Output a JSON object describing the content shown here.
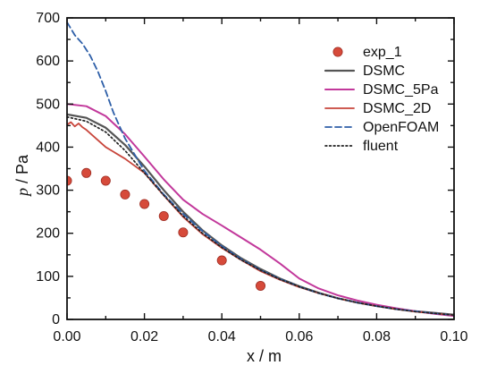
{
  "chart_data": {
    "type": "line",
    "title": "",
    "xlabel": "x / m",
    "ylabel_symbol": "p",
    "ylabel_unit": "/ Pa",
    "xlim": [
      0,
      0.1
    ],
    "ylim": [
      0,
      700
    ],
    "x_ticks": [
      0.0,
      0.02,
      0.04,
      0.06,
      0.08,
      0.1
    ],
    "x_tick_labels": [
      "0.00",
      "0.02",
      "0.04",
      "0.06",
      "0.08",
      "0.10"
    ],
    "y_ticks": [
      0,
      100,
      200,
      300,
      400,
      500,
      600,
      700
    ],
    "y_tick_labels": [
      "0",
      "100",
      "200",
      "300",
      "400",
      "500",
      "600",
      "700"
    ],
    "grid": false,
    "legend_position": "top-right",
    "series": [
      {
        "name": "exp_1",
        "kind": "scatter",
        "color": "#d64a3a",
        "points": [
          [
            0.0,
            322
          ],
          [
            0.005,
            340
          ],
          [
            0.01,
            322
          ],
          [
            0.015,
            290
          ],
          [
            0.02,
            268
          ],
          [
            0.025,
            240
          ],
          [
            0.03,
            202
          ],
          [
            0.04,
            137
          ],
          [
            0.05,
            78
          ]
        ]
      },
      {
        "name": "DSMC",
        "kind": "line",
        "color": "#555555",
        "dash": "solid",
        "points": [
          [
            0.0,
            476
          ],
          [
            0.005,
            468
          ],
          [
            0.01,
            445
          ],
          [
            0.015,
            405
          ],
          [
            0.02,
            355
          ],
          [
            0.025,
            300
          ],
          [
            0.03,
            250
          ],
          [
            0.035,
            207
          ],
          [
            0.04,
            172
          ],
          [
            0.045,
            142
          ],
          [
            0.05,
            117
          ],
          [
            0.055,
            95
          ],
          [
            0.06,
            77
          ],
          [
            0.065,
            62
          ],
          [
            0.07,
            49
          ],
          [
            0.075,
            39
          ],
          [
            0.08,
            31
          ],
          [
            0.085,
            24
          ],
          [
            0.09,
            19
          ],
          [
            0.095,
            15
          ],
          [
            0.1,
            11
          ]
        ]
      },
      {
        "name": "DSMC_5Pa",
        "kind": "line",
        "color": "#c2389b",
        "dash": "solid",
        "points": [
          [
            0.0,
            500
          ],
          [
            0.005,
            495
          ],
          [
            0.01,
            472
          ],
          [
            0.015,
            430
          ],
          [
            0.02,
            378
          ],
          [
            0.025,
            325
          ],
          [
            0.03,
            278
          ],
          [
            0.035,
            245
          ],
          [
            0.04,
            218
          ],
          [
            0.045,
            190
          ],
          [
            0.05,
            162
          ],
          [
            0.055,
            130
          ],
          [
            0.06,
            95
          ],
          [
            0.065,
            72
          ],
          [
            0.07,
            56
          ],
          [
            0.075,
            44
          ],
          [
            0.08,
            34
          ],
          [
            0.085,
            26
          ],
          [
            0.09,
            19
          ],
          [
            0.095,
            13
          ],
          [
            0.1,
            8
          ]
        ]
      },
      {
        "name": "DSMC_2D",
        "kind": "line",
        "color": "#c8453b",
        "dash": "solid",
        "points": [
          [
            0.0,
            452
          ],
          [
            0.001,
            458
          ],
          [
            0.002,
            448
          ],
          [
            0.003,
            455
          ],
          [
            0.004,
            446
          ],
          [
            0.005,
            440
          ],
          [
            0.01,
            400
          ],
          [
            0.015,
            373
          ],
          [
            0.02,
            340
          ],
          [
            0.025,
            288
          ],
          [
            0.03,
            238
          ],
          [
            0.035,
            198
          ],
          [
            0.04,
            166
          ],
          [
            0.045,
            138
          ],
          [
            0.05,
            112
          ],
          [
            0.055,
            92
          ],
          [
            0.06,
            75
          ],
          [
            0.065,
            61
          ],
          [
            0.07,
            49
          ],
          [
            0.075,
            39
          ],
          [
            0.08,
            31
          ],
          [
            0.085,
            24
          ],
          [
            0.09,
            18
          ],
          [
            0.095,
            14
          ],
          [
            0.1,
            10
          ]
        ]
      },
      {
        "name": "OpenFOAM",
        "kind": "line",
        "color": "#2e5fa8",
        "dash": "dashed",
        "points": [
          [
            0.0,
            690
          ],
          [
            0.002,
            660
          ],
          [
            0.004,
            640
          ],
          [
            0.006,
            612
          ],
          [
            0.008,
            575
          ],
          [
            0.01,
            530
          ],
          [
            0.012,
            480
          ],
          [
            0.015,
            420
          ],
          [
            0.02,
            345
          ],
          [
            0.025,
            290
          ],
          [
            0.03,
            245
          ],
          [
            0.035,
            205
          ],
          [
            0.04,
            170
          ],
          [
            0.045,
            140
          ],
          [
            0.05,
            115
          ],
          [
            0.055,
            94
          ],
          [
            0.06,
            76
          ],
          [
            0.065,
            61
          ],
          [
            0.07,
            49
          ],
          [
            0.075,
            39
          ],
          [
            0.08,
            31
          ],
          [
            0.085,
            24
          ],
          [
            0.09,
            19
          ],
          [
            0.095,
            14
          ],
          [
            0.1,
            10
          ]
        ]
      },
      {
        "name": "fluent",
        "kind": "line",
        "color": "#222222",
        "dash": "dotted",
        "points": [
          [
            0.0,
            470
          ],
          [
            0.005,
            460
          ],
          [
            0.01,
            435
          ],
          [
            0.015,
            392
          ],
          [
            0.02,
            340
          ],
          [
            0.025,
            288
          ],
          [
            0.03,
            240
          ],
          [
            0.035,
            200
          ],
          [
            0.04,
            167
          ],
          [
            0.045,
            138
          ],
          [
            0.05,
            114
          ],
          [
            0.055,
            93
          ],
          [
            0.06,
            76
          ],
          [
            0.065,
            61
          ],
          [
            0.07,
            49
          ],
          [
            0.075,
            39
          ],
          [
            0.08,
            31
          ],
          [
            0.085,
            24
          ],
          [
            0.09,
            18
          ],
          [
            0.095,
            14
          ],
          [
            0.1,
            10
          ]
        ]
      }
    ]
  }
}
